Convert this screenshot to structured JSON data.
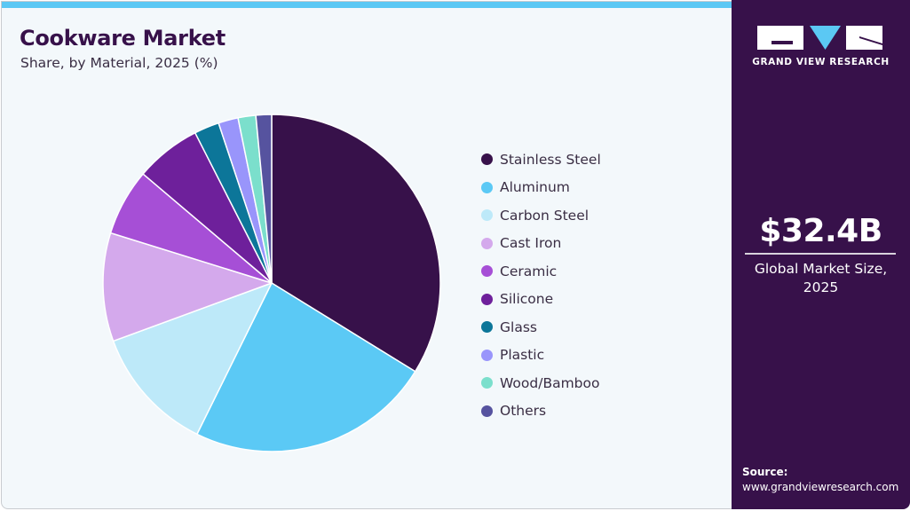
{
  "header": {
    "title": "Cookware Market",
    "subtitle": "Share, by Material, 2025 (%)"
  },
  "brand": {
    "logo_icon": "gvr-logo-icon",
    "name": "GRAND VIEW RESEARCH"
  },
  "market": {
    "value": "$32.4B",
    "label_line1": "Global Market Size,",
    "label_line2": "2025"
  },
  "source": {
    "label": "Source:",
    "url": "www.grandviewresearch.com"
  },
  "colors": {
    "accent_bar": "#5bc8f4",
    "side_panel": "#37114a",
    "background": "#f3f8fb",
    "title": "#37114a"
  },
  "chart_data": {
    "type": "pie",
    "title": "Cookware Market",
    "subtitle": "Share, by Material, 2025 (%)",
    "start_angle": "12 o'clock, clockwise",
    "legend_position": "right",
    "categories": [
      "Stainless Steel",
      "Aluminum",
      "Carbon Steel",
      "Cast Iron",
      "Ceramic",
      "Silicone",
      "Glass",
      "Plastic",
      "Wood/Bamboo",
      "Others"
    ],
    "values": [
      33.8,
      23.5,
      12.1,
      10.4,
      6.4,
      6.3,
      2.4,
      1.9,
      1.7,
      1.5
    ],
    "colors": [
      "#37114a",
      "#5bc9f5",
      "#bde9f9",
      "#d4a9ec",
      "#a64fd6",
      "#6e209b",
      "#0c7699",
      "#9995fb",
      "#7bdfcc",
      "#56539f"
    ]
  }
}
